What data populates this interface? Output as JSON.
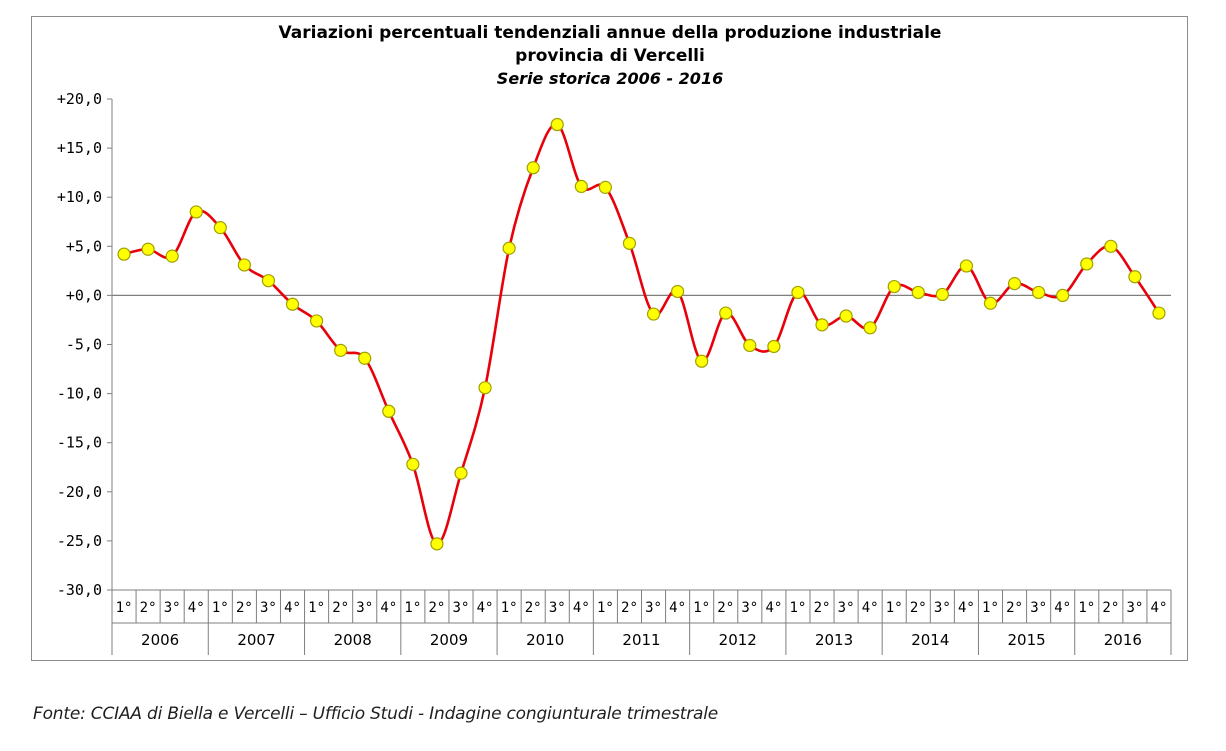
{
  "chart_data": {
    "type": "line",
    "title": "Variazioni percentuali tendenziali annue della produzione industriale",
    "title_line2": "provincia di Vercelli",
    "subtitle": "Serie storica 2006 - 2016",
    "ylim": [
      -30,
      20
    ],
    "yticks": [
      "+20,0",
      "+15,0",
      "+10,0",
      "+5,0",
      "+0,0",
      "-5,0",
      "-10,0",
      "-15,0",
      "-20,0",
      "-25,0",
      "-30,0"
    ],
    "ytick_values": [
      20,
      15,
      10,
      5,
      0,
      -5,
      -10,
      -15,
      -20,
      -25,
      -30
    ],
    "quarter_labels": [
      "1°",
      "2°",
      "3°",
      "4°"
    ],
    "years": [
      "2006",
      "2007",
      "2008",
      "2009",
      "2010",
      "2011",
      "2012",
      "2013",
      "2014",
      "2015",
      "2016"
    ],
    "grid": false,
    "line_color": "#e8000b",
    "marker_fill": "#ffff00",
    "marker_stroke": "#a0a000",
    "series": [
      {
        "values": [
          4.2,
          4.7,
          4.0,
          8.5,
          6.9,
          3.1,
          1.5,
          -0.9,
          -2.6,
          -5.6,
          -6.4,
          -11.8,
          -17.2,
          -25.3,
          -18.1,
          -9.4,
          4.8,
          13.0,
          17.4,
          11.1,
          11.0,
          5.3,
          -1.9,
          0.4,
          -6.7,
          -1.8,
          -5.1,
          -5.2,
          0.3,
          -3.0,
          -2.1,
          -3.3,
          0.9,
          0.3,
          0.1,
          3.0,
          -0.8,
          1.2,
          0.3,
          0.0,
          3.2,
          5.0,
          1.9,
          -1.8
        ]
      }
    ]
  },
  "source_note": "Fonte: CCIAA di Biella e Vercelli – Ufficio Studi - Indagine congiunturale trimestrale"
}
